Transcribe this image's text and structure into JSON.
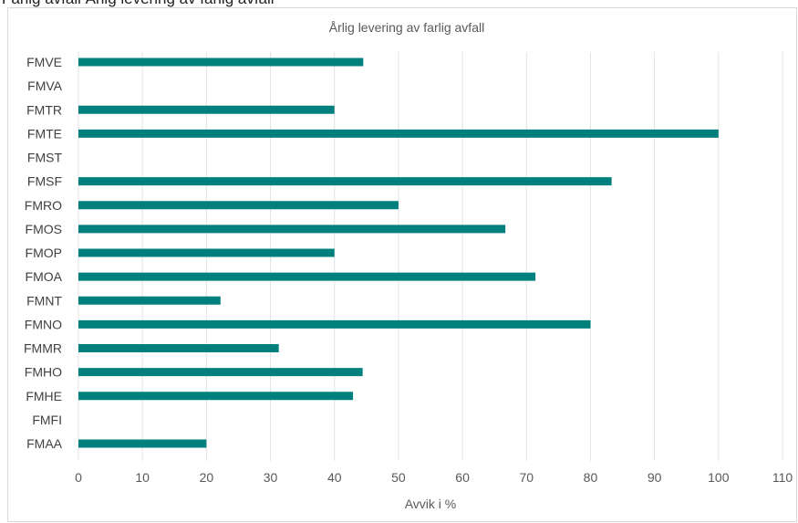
{
  "page_caption": "Farlig avfall Årlig levering av farlig avfall",
  "chart_data": {
    "type": "bar",
    "orientation": "horizontal",
    "title": "Årlig levering av farlig avfall",
    "xlabel": "Avvik i %",
    "ylabel": "",
    "xlim": [
      0,
      110
    ],
    "x_ticks": [
      "0",
      "10",
      "20",
      "30",
      "40",
      "50",
      "60",
      "70",
      "80",
      "90",
      "100",
      "110"
    ],
    "grid": true,
    "legend": "none",
    "bar_color": "#00807c",
    "categories": [
      "FMVE",
      "FMVA",
      "FMTR",
      "FMTE",
      "FMST",
      "FMSF",
      "FMRO",
      "FMOS",
      "FMOP",
      "FMOA",
      "FMNT",
      "FMNO",
      "FMMR",
      "FMHO",
      "FMHE",
      "FMFI",
      "FMAA"
    ],
    "values": [
      44.5,
      0,
      40,
      100,
      0,
      83.3,
      50,
      66.7,
      40,
      71.4,
      22.2,
      80,
      31.3,
      44.4,
      42.9,
      0,
      20
    ]
  }
}
